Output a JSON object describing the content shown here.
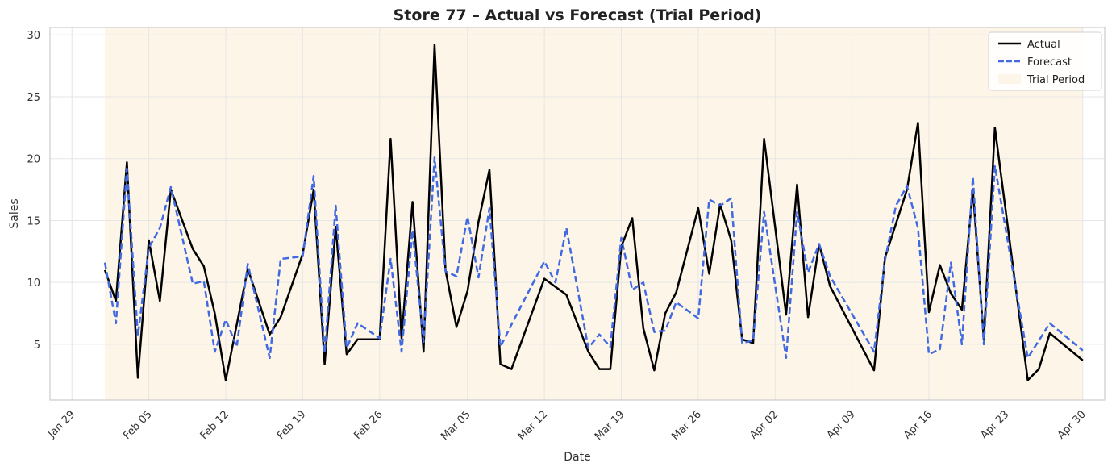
{
  "chart_data": {
    "type": "line",
    "title": "Store 77 – Actual vs Forecast (Trial Period)",
    "xlabel": "Date",
    "ylabel": "Sales",
    "x_axis": "date",
    "xlim": [
      "2024-01-27",
      "2024-05-02"
    ],
    "ylim": [
      0.5,
      30.6
    ],
    "yticks": [
      5,
      10,
      15,
      20,
      25,
      30
    ],
    "xticks": [
      {
        "date": "2024-01-29",
        "label": "Jan 29"
      },
      {
        "date": "2024-02-05",
        "label": "Feb 05"
      },
      {
        "date": "2024-02-12",
        "label": "Feb 12"
      },
      {
        "date": "2024-02-19",
        "label": "Feb 19"
      },
      {
        "date": "2024-02-26",
        "label": "Feb 26"
      },
      {
        "date": "2024-03-05",
        "label": "Mar 05"
      },
      {
        "date": "2024-03-12",
        "label": "Mar 12"
      },
      {
        "date": "2024-03-19",
        "label": "Mar 19"
      },
      {
        "date": "2024-03-26",
        "label": "Mar 26"
      },
      {
        "date": "2024-04-02",
        "label": "Apr 02"
      },
      {
        "date": "2024-04-09",
        "label": "Apr 09"
      },
      {
        "date": "2024-04-16",
        "label": "Apr 16"
      },
      {
        "date": "2024-04-23",
        "label": "Apr 23"
      },
      {
        "date": "2024-04-30",
        "label": "Apr 30"
      }
    ],
    "grid": true,
    "legend_position": "top-right",
    "shaded_region": {
      "name": "Trial Period",
      "start": "2024-02-01",
      "end": "2024-04-30",
      "color": "#fdf6e8"
    },
    "series": [
      {
        "name": "Actual",
        "color": "#000000",
        "style": "solid",
        "points": [
          [
            "2024-02-01",
            11.0
          ],
          [
            "2024-02-02",
            8.5
          ],
          [
            "2024-02-03",
            19.7
          ],
          [
            "2024-02-04",
            2.3
          ],
          [
            "2024-02-05",
            13.4
          ],
          [
            "2024-02-06",
            8.5
          ],
          [
            "2024-02-07",
            17.5
          ],
          [
            "2024-02-09",
            12.7
          ],
          [
            "2024-02-10",
            11.3
          ],
          [
            "2024-02-11",
            7.5
          ],
          [
            "2024-02-12",
            2.1
          ],
          [
            "2024-02-14",
            11.1
          ],
          [
            "2024-02-16",
            5.8
          ],
          [
            "2024-02-17",
            7.2
          ],
          [
            "2024-02-19",
            12.3
          ],
          [
            "2024-02-20",
            17.5
          ],
          [
            "2024-02-21",
            3.4
          ],
          [
            "2024-02-22",
            14.5
          ],
          [
            "2024-02-23",
            4.2
          ],
          [
            "2024-02-24",
            5.4
          ],
          [
            "2024-02-26",
            5.4
          ],
          [
            "2024-02-27",
            21.6
          ],
          [
            "2024-02-28",
            5.5
          ],
          [
            "2024-02-29",
            16.5
          ],
          [
            "2024-03-01",
            4.4
          ],
          [
            "2024-03-02",
            29.2
          ],
          [
            "2024-03-03",
            11.0
          ],
          [
            "2024-03-04",
            6.4
          ],
          [
            "2024-03-05",
            9.3
          ],
          [
            "2024-03-06",
            14.9
          ],
          [
            "2024-03-07",
            19.1
          ],
          [
            "2024-03-08",
            3.4
          ],
          [
            "2024-03-09",
            3.0
          ],
          [
            "2024-03-12",
            10.3
          ],
          [
            "2024-03-14",
            9.0
          ],
          [
            "2024-03-16",
            4.4
          ],
          [
            "2024-03-17",
            3.0
          ],
          [
            "2024-03-18",
            3.0
          ],
          [
            "2024-03-19",
            12.9
          ],
          [
            "2024-03-20",
            15.2
          ],
          [
            "2024-03-21",
            6.3
          ],
          [
            "2024-03-22",
            2.9
          ],
          [
            "2024-03-23",
            7.5
          ],
          [
            "2024-03-24",
            9.2
          ],
          [
            "2024-03-26",
            16.0
          ],
          [
            "2024-03-27",
            10.7
          ],
          [
            "2024-03-28",
            16.3
          ],
          [
            "2024-03-29",
            13.4
          ],
          [
            "2024-03-30",
            5.4
          ],
          [
            "2024-03-31",
            5.1
          ],
          [
            "2024-04-01",
            21.6
          ],
          [
            "2024-04-03",
            7.4
          ],
          [
            "2024-04-04",
            17.9
          ],
          [
            "2024-04-05",
            7.2
          ],
          [
            "2024-04-06",
            13.1
          ],
          [
            "2024-04-07",
            9.7
          ],
          [
            "2024-04-11",
            2.9
          ],
          [
            "2024-04-12",
            12.0
          ],
          [
            "2024-04-14",
            17.5
          ],
          [
            "2024-04-15",
            22.9
          ],
          [
            "2024-04-16",
            7.6
          ],
          [
            "2024-04-17",
            11.4
          ],
          [
            "2024-04-18",
            9.1
          ],
          [
            "2024-04-19",
            7.8
          ],
          [
            "2024-04-20",
            17.5
          ],
          [
            "2024-04-21",
            5.4
          ],
          [
            "2024-04-22",
            22.5
          ],
          [
            "2024-04-25",
            2.1
          ],
          [
            "2024-04-26",
            3.0
          ],
          [
            "2024-04-27",
            5.9
          ],
          [
            "2024-04-30",
            3.7
          ]
        ]
      },
      {
        "name": "Forecast",
        "color": "#4169e1",
        "style": "dashed",
        "points": [
          [
            "2024-02-01",
            11.6
          ],
          [
            "2024-02-02",
            6.7
          ],
          [
            "2024-02-03",
            19.2
          ],
          [
            "2024-02-04",
            5.7
          ],
          [
            "2024-02-05",
            12.8
          ],
          [
            "2024-02-06",
            14.4
          ],
          [
            "2024-02-07",
            17.7
          ],
          [
            "2024-02-09",
            9.9
          ],
          [
            "2024-02-10",
            10.1
          ],
          [
            "2024-02-11",
            4.4
          ],
          [
            "2024-02-12",
            7.0
          ],
          [
            "2024-02-13",
            4.8
          ],
          [
            "2024-02-14",
            11.5
          ],
          [
            "2024-02-16",
            3.9
          ],
          [
            "2024-02-17",
            11.9
          ],
          [
            "2024-02-19",
            12.1
          ],
          [
            "2024-02-20",
            18.6
          ],
          [
            "2024-02-21",
            4.3
          ],
          [
            "2024-02-22",
            16.2
          ],
          [
            "2024-02-23",
            4.7
          ],
          [
            "2024-02-24",
            6.7
          ],
          [
            "2024-02-26",
            5.5
          ],
          [
            "2024-02-27",
            11.9
          ],
          [
            "2024-02-28",
            4.4
          ],
          [
            "2024-02-29",
            14.2
          ],
          [
            "2024-03-01",
            5.2
          ],
          [
            "2024-03-02",
            20.1
          ],
          [
            "2024-03-03",
            10.9
          ],
          [
            "2024-03-04",
            10.5
          ],
          [
            "2024-03-05",
            15.3
          ],
          [
            "2024-03-06",
            10.4
          ],
          [
            "2024-03-07",
            16.0
          ],
          [
            "2024-03-08",
            4.8
          ],
          [
            "2024-03-09",
            6.6
          ],
          [
            "2024-03-12",
            11.7
          ],
          [
            "2024-03-13",
            10.0
          ],
          [
            "2024-03-14",
            14.4
          ],
          [
            "2024-03-16",
            4.7
          ],
          [
            "2024-03-17",
            5.8
          ],
          [
            "2024-03-18",
            4.8
          ],
          [
            "2024-03-19",
            13.6
          ],
          [
            "2024-03-20",
            9.4
          ],
          [
            "2024-03-21",
            10.0
          ],
          [
            "2024-03-22",
            6.0
          ],
          [
            "2024-03-23",
            6.1
          ],
          [
            "2024-03-24",
            8.4
          ],
          [
            "2024-03-26",
            7.1
          ],
          [
            "2024-03-27",
            16.7
          ],
          [
            "2024-03-28",
            16.2
          ],
          [
            "2024-03-29",
            16.8
          ],
          [
            "2024-03-30",
            5.1
          ],
          [
            "2024-03-31",
            5.3
          ],
          [
            "2024-04-01",
            15.7
          ],
          [
            "2024-04-03",
            3.9
          ],
          [
            "2024-04-04",
            15.7
          ],
          [
            "2024-04-05",
            10.8
          ],
          [
            "2024-04-06",
            13.1
          ],
          [
            "2024-04-07",
            10.5
          ],
          [
            "2024-04-11",
            4.4
          ],
          [
            "2024-04-12",
            11.8
          ],
          [
            "2024-04-13",
            16.2
          ],
          [
            "2024-04-14",
            17.8
          ],
          [
            "2024-04-15",
            14.4
          ],
          [
            "2024-04-16",
            4.2
          ],
          [
            "2024-04-17",
            4.6
          ],
          [
            "2024-04-18",
            11.6
          ],
          [
            "2024-04-19",
            5.0
          ],
          [
            "2024-04-20",
            18.5
          ],
          [
            "2024-04-21",
            5.0
          ],
          [
            "2024-04-22",
            19.4
          ],
          [
            "2024-04-25",
            3.9
          ],
          [
            "2024-04-27",
            6.7
          ],
          [
            "2024-04-30",
            4.5
          ]
        ]
      }
    ]
  }
}
